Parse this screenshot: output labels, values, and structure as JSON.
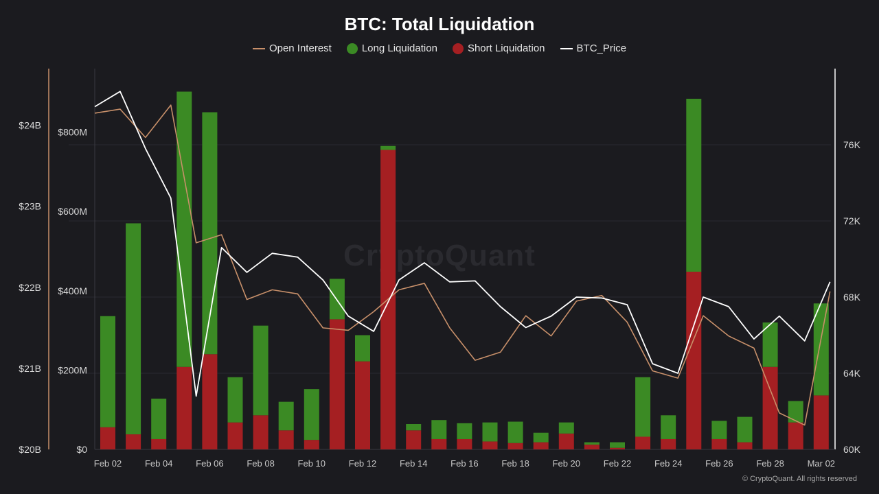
{
  "chart_data": {
    "type": "bar",
    "title": "BTC: Total Liquidation",
    "watermark": "CryptoQuant",
    "copyright": "© CryptoQuant. All rights reserved",
    "legend": [
      {
        "name": "Open Interest",
        "color": "#c8906a",
        "marker": "line"
      },
      {
        "name": "Long Liquidation",
        "color": "#3b8a24",
        "marker": "dot"
      },
      {
        "name": "Short Liquidation",
        "color": "#a51f22",
        "marker": "dot"
      },
      {
        "name": "BTC_Price",
        "color": "#ffffff",
        "marker": "line"
      }
    ],
    "colors": {
      "long": "#3b8a24",
      "short": "#a51f22",
      "oi": "#c8906a",
      "price": "#ffffff",
      "grid": "#2a2a30",
      "oi_axis": "#c8906a",
      "price_axis": "#ffffff"
    },
    "x_labels": [
      "Feb 02",
      "Feb 04",
      "Feb 06",
      "Feb 08",
      "Feb 10",
      "Feb 12",
      "Feb 14",
      "Feb 16",
      "Feb 18",
      "Feb 20",
      "Feb 22",
      "Feb 24",
      "Feb 26",
      "Feb 28",
      "Mar 02"
    ],
    "dates": [
      "Feb 02",
      "Feb 03",
      "Feb 04",
      "Feb 05",
      "Feb 06",
      "Feb 07",
      "Feb 08",
      "Feb 09",
      "Feb 10",
      "Feb 11",
      "Feb 12",
      "Feb 13",
      "Feb 14",
      "Feb 15",
      "Feb 16",
      "Feb 17",
      "Feb 18",
      "Feb 19",
      "Feb 20",
      "Feb 21",
      "Feb 22",
      "Feb 23",
      "Feb 24",
      "Feb 25",
      "Feb 26",
      "Feb 27",
      "Feb 28",
      "Mar 01",
      "Mar 02"
    ],
    "short_liquidation": [
      56,
      38,
      26,
      208,
      240,
      68,
      86,
      48,
      24,
      328,
      222,
      755,
      48,
      26,
      26,
      20,
      16,
      18,
      40,
      12,
      4,
      32,
      26,
      448,
      26,
      18,
      208,
      68,
      136
    ],
    "long_liquidation": [
      280,
      532,
      102,
      694,
      610,
      114,
      226,
      72,
      128,
      102,
      66,
      10,
      16,
      48,
      40,
      48,
      54,
      24,
      28,
      6,
      14,
      150,
      60,
      436,
      46,
      64,
      112,
      54,
      232
    ],
    "open_interest": [
      24.15,
      24.2,
      23.85,
      24.25,
      22.55,
      22.65,
      21.85,
      21.97,
      21.92,
      21.5,
      21.47,
      21.7,
      21.97,
      22.05,
      21.5,
      21.1,
      21.2,
      21.65,
      21.4,
      21.83,
      21.9,
      21.57,
      20.97,
      20.88,
      21.65,
      21.4,
      21.25,
      20.45,
      20.3,
      21.95
    ],
    "btc_price": [
      78.0,
      78.8,
      75.8,
      73.2,
      62.8,
      70.6,
      69.3,
      70.3,
      70.1,
      68.9,
      67.0,
      66.2,
      68.9,
      69.8,
      68.8,
      68.85,
      67.5,
      66.4,
      67.0,
      68.0,
      67.95,
      67.6,
      64.5,
      64.0,
      68.0,
      67.5,
      65.8,
      67.0,
      65.7,
      68.8
    ],
    "left_axis_oi": {
      "ticks": [
        "$20B",
        "$21B",
        "$22B",
        "$23B",
        "$24B"
      ],
      "min": 20,
      "max": 24.7
    },
    "left_axis_liq": {
      "ticks": [
        "$0",
        "$200M",
        "$400M",
        "$600M",
        "$800M"
      ],
      "min": 0,
      "max": 960
    },
    "right_axis_price": {
      "ticks": [
        "60K",
        "64K",
        "68K",
        "72K",
        "76K"
      ],
      "min": 60,
      "max": 80
    }
  }
}
